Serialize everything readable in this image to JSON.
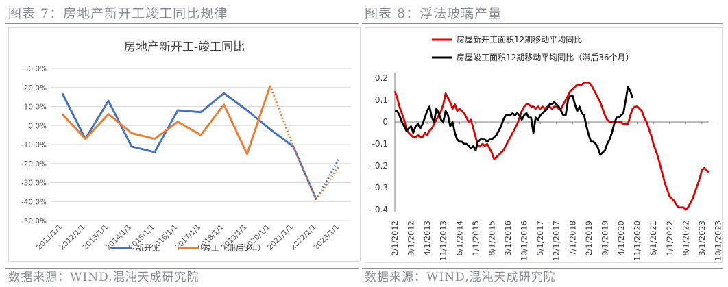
{
  "left": {
    "heading": "图表 7：房地产新开工竣工同比规律",
    "source": "数据来源：WIND,混沌天成研究院"
  },
  "right": {
    "heading": "图表 8：浮法玻璃产量",
    "source": "数据来源：WIND,混沌天成研究院"
  },
  "chart_data": [
    {
      "type": "line",
      "title": "房地产新开工-竣工同比",
      "categories": [
        "2011/1/1",
        "2012/1/1",
        "2013/1/1",
        "2014/1/1",
        "2015/1/1",
        "2016/1/1",
        "2017/1/1",
        "2018/1/1",
        "2019/1/1",
        "2020/1/1",
        "2021/1/1",
        "2022/1/1",
        "2023/1/1"
      ],
      "y_ticks": [
        "30.0%",
        "20.0%",
        "10.0%",
        "0.0%",
        "-10.0%",
        "-20.0%",
        "-30.0%",
        "-40.0%",
        "-50.0%"
      ],
      "ylim": [
        -0.5,
        0.3
      ],
      "series": [
        {
          "name": "新开工",
          "color": "#4472c4",
          "values": [
            0.17,
            -0.07,
            0.13,
            -0.11,
            -0.14,
            0.08,
            0.07,
            0.17,
            0.08,
            -0.02,
            -0.11,
            -0.39,
            -0.17
          ],
          "dotted_from_index": 11
        },
        {
          "name": "竣工（滞后3年）",
          "color": "#ed7d31",
          "values": [
            0.06,
            -0.07,
            0.06,
            -0.04,
            -0.07,
            0.02,
            -0.05,
            0.11,
            -0.15,
            0.21,
            -0.11,
            -0.39,
            -0.21
          ],
          "dotted_from_index": 9
        }
      ],
      "grid": true,
      "legend": "bottom"
    },
    {
      "type": "line",
      "y_ticks": [
        "0.2",
        "0.1",
        "0",
        "-0.1",
        "-0.2",
        "-0.3",
        "-0.4"
      ],
      "ylim": [
        -0.4,
        0.2
      ],
      "x_ticks": [
        "2/1/2012",
        "9/1/2012",
        "4/1/2013",
        "11/1/2013",
        "6/1/2014",
        "1/1/2015",
        "8/1/2015",
        "3/1/2016",
        "10/1/2016",
        "5/1/2017",
        "12/1/2017",
        "7/1/2018",
        "2/1/2019",
        "9/1/2019",
        "4/1/2020",
        "11/1/2020",
        "6/1/2021",
        "1/1/2022",
        "8/1/2022",
        "3/1/2023",
        "10/1/2023"
      ],
      "x_start": "2012-02",
      "series": [
        {
          "name": "房屋新开工面积12期移动平均同比",
          "color": "#e00000",
          "values": [
            0.14,
            0.11,
            0.07,
            0.04,
            0.01,
            -0.03,
            -0.05,
            -0.06,
            -0.07,
            -0.07,
            -0.06,
            -0.07,
            -0.07,
            -0.05,
            -0.06,
            -0.04,
            -0.03,
            -0.01,
            0.01,
            0.03,
            0.05,
            0.08,
            0.13,
            0.11,
            0.09,
            0.06,
            0.08,
            0.05,
            0.06,
            0.05,
            0.04,
            0.02,
            0.0,
            0.01,
            -0.03,
            -0.07,
            -0.11,
            -0.11,
            -0.1,
            -0.11,
            -0.1,
            -0.12,
            -0.14,
            -0.17,
            -0.16,
            -0.15,
            -0.14,
            -0.13,
            -0.11,
            -0.09,
            -0.07,
            -0.05,
            -0.03,
            -0.01,
            0.02,
            0.05,
            0.07,
            0.08,
            0.08,
            0.07,
            0.07,
            0.06,
            0.07,
            0.06,
            0.07,
            0.06,
            0.07,
            0.07,
            0.06,
            0.07,
            0.07,
            0.06,
            0.06,
            0.08,
            0.1,
            0.12,
            0.14,
            0.15,
            0.16,
            0.17,
            0.17,
            0.17,
            0.18,
            0.18,
            0.18,
            0.17,
            0.15,
            0.13,
            0.11,
            0.09,
            0.06,
            0.03,
            0.01,
            0.0,
            0.0,
            0.0,
            0.0,
            0.0,
            0.0,
            -0.01,
            -0.01,
            -0.01,
            0.03,
            0.06,
            0.07,
            0.07,
            0.06,
            0.05,
            0.02,
            0.0,
            -0.03,
            -0.06,
            -0.1,
            -0.13,
            -0.16,
            -0.2,
            -0.24,
            -0.28,
            -0.31,
            -0.34,
            -0.35,
            -0.36,
            -0.38,
            -0.39,
            -0.39,
            -0.39,
            -0.4,
            -0.39,
            -0.37,
            -0.35,
            -0.32,
            -0.29,
            -0.26,
            -0.22,
            -0.21,
            -0.22,
            -0.23
          ]
        },
        {
          "name": "房屋竣工面积12期移动平均同比（滞后36个月）",
          "color": "#000000",
          "values": [
            0.05,
            0.05,
            0.03,
            0.0,
            -0.02,
            -0.04,
            -0.03,
            -0.02,
            -0.05,
            -0.02,
            -0.01,
            -0.03,
            -0.01,
            0.02,
            0.05,
            0.07,
            0.02,
            0.0,
            0.06,
            0.04,
            0.01,
            0.0,
            0.05,
            0.03,
            -0.02,
            0.0,
            -0.05,
            -0.08,
            -0.09,
            -0.09,
            -0.1,
            -0.1,
            -0.11,
            -0.12,
            -0.11,
            -0.13,
            -0.09,
            -0.08,
            -0.08,
            -0.08,
            -0.09,
            -0.08,
            -0.08,
            -0.07,
            -0.06,
            -0.04,
            -0.02,
            0.01,
            0.03,
            0.03,
            0.03,
            0.04,
            0.03,
            0.04,
            0.03,
            0.01,
            0.03,
            0.04,
            0.02,
            0.02,
            -0.05,
            0.02,
            0.01,
            0.03,
            0.04,
            0.05,
            0.06,
            0.08,
            0.08,
            0.09,
            0.08,
            0.07,
            0.05,
            0.03,
            0.03,
            0.1,
            0.12,
            0.12,
            0.08,
            0.05,
            0.07,
            0.04,
            0.03,
            -0.02,
            -0.06,
            -0.09,
            -0.09,
            -0.1,
            -0.12,
            -0.15,
            -0.14,
            -0.13,
            -0.1,
            -0.08,
            -0.05,
            -0.01,
            0.02,
            0.02,
            0.03,
            0.04,
            0.1,
            0.16,
            0.14,
            0.11
          ]
        }
      ],
      "grid": false,
      "legend": "top-left"
    }
  ]
}
